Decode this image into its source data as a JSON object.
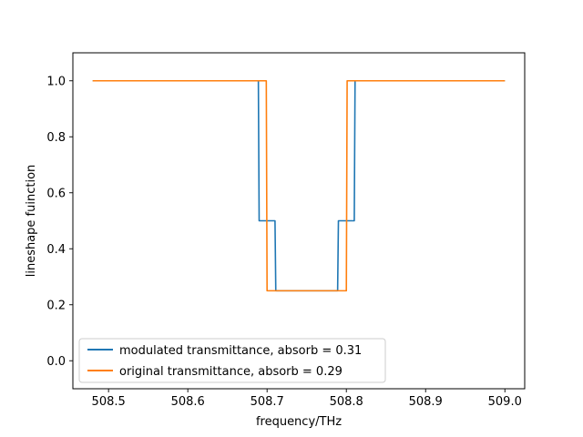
{
  "chart_data": {
    "type": "line",
    "xlabel": "frequency/THz",
    "ylabel": "lineshape fuinction",
    "xlim": [
      508.455,
      509.025
    ],
    "ylim": [
      -0.1,
      1.1
    ],
    "xticks": [
      508.5,
      508.6,
      508.7,
      508.8,
      508.9,
      509.0
    ],
    "xtick_labels": [
      "508.5",
      "508.6",
      "508.7",
      "508.8",
      "508.9",
      "509.0"
    ],
    "yticks": [
      0.0,
      0.2,
      0.4,
      0.6,
      0.8,
      1.0
    ],
    "ytick_labels": [
      "0.0",
      "0.2",
      "0.4",
      "0.6",
      "0.8",
      "1.0"
    ],
    "grid": false,
    "legend_position": "lower-left",
    "series": [
      {
        "name": "modulated transmittance, absorb = 0.31",
        "color": "#1f77b4",
        "x": [
          508.48,
          508.689,
          508.69,
          508.71,
          508.711,
          508.789,
          508.79,
          508.81,
          508.811,
          509.0
        ],
        "y": [
          1.0,
          1.0,
          0.5,
          0.5,
          0.25,
          0.25,
          0.5,
          0.5,
          1.0,
          1.0
        ]
      },
      {
        "name": "original transmittance, absorb = 0.29",
        "color": "#ff7f0e",
        "x": [
          508.48,
          508.699,
          508.7,
          508.8,
          508.801,
          509.0
        ],
        "y": [
          1.0,
          1.0,
          0.25,
          0.25,
          1.0,
          1.0
        ]
      }
    ]
  }
}
